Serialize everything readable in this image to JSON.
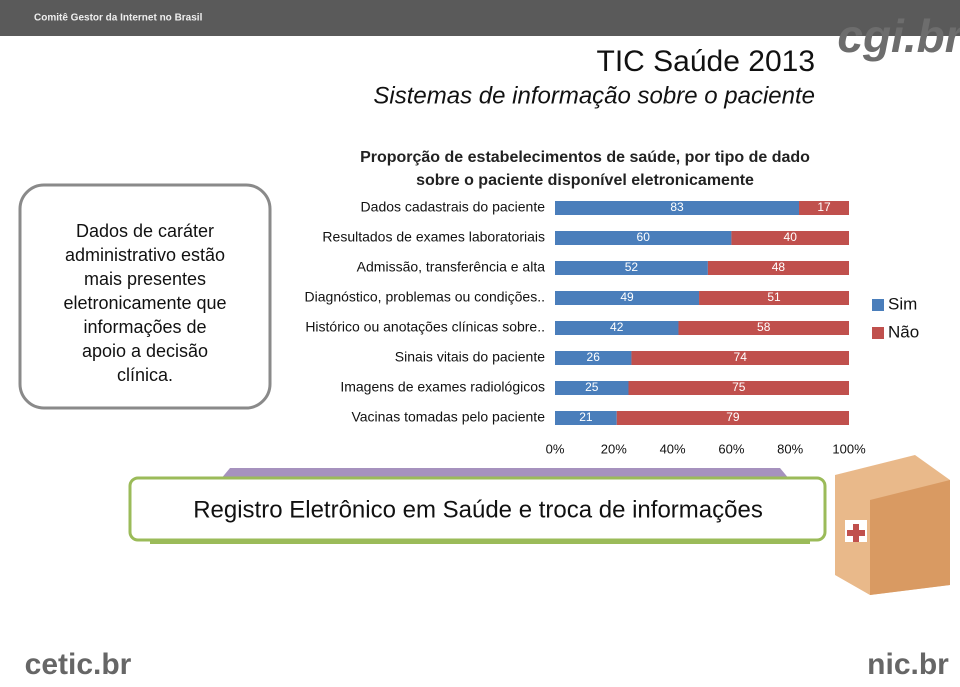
{
  "header": {
    "organization": "Comitê Gestor da Internet no Brasil",
    "logo": "cgi.br",
    "title": "TIC Saúde 2013",
    "subtitle": "Sistemas de informação sobre o paciente"
  },
  "callout": {
    "lines": [
      "Dados de caráter",
      "administrativo estão",
      "mais presentes",
      "eletronicamente que",
      "informações de",
      "apoio a decisão",
      "clínica."
    ]
  },
  "banner": {
    "text": "Registro Eletrônico em Saúde e troca de informações"
  },
  "footer": {
    "left_logo": "cetic.br",
    "right_logo": "nic.br"
  },
  "chart_data": {
    "type": "stacked-barh",
    "title": "Proporção de estabelecimentos de saúde, por tipo de dado sobre o paciente disponível eletronicamente",
    "categories": [
      "Dados cadastrais do paciente",
      "Resultados de exames laboratoriais",
      "Admissão, transferência e alta",
      "Diagnóstico, problemas ou condições..",
      "Histórico ou anotações clínicas sobre..",
      "Sinais vitais do paciente",
      "Imagens de exames radiológicos",
      "Vacinas tomadas pelo paciente"
    ],
    "series": [
      {
        "name": "Sim",
        "color": "#4a7ebb",
        "values": [
          83,
          60,
          52,
          49,
          42,
          26,
          25,
          21
        ]
      },
      {
        "name": "Não",
        "color": "#c0504d",
        "values": [
          17,
          40,
          48,
          51,
          58,
          74,
          75,
          79
        ]
      }
    ],
    "xlim": [
      0,
      100
    ],
    "xticks": [
      {
        "value": 0,
        "label": "0%"
      },
      {
        "value": 20,
        "label": "20%"
      },
      {
        "value": 40,
        "label": "40%"
      },
      {
        "value": 60,
        "label": "60%"
      },
      {
        "value": 80,
        "label": "80%"
      },
      {
        "value": 100,
        "label": "100%"
      }
    ],
    "legend": "right"
  }
}
